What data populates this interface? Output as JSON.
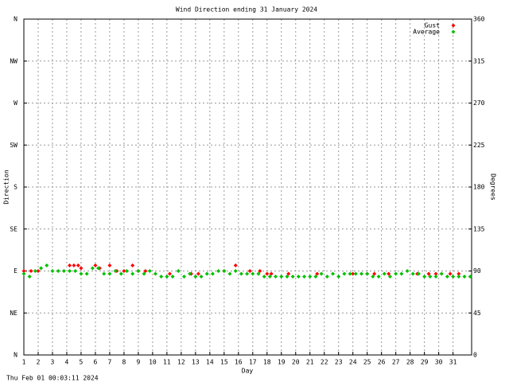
{
  "chart_data": {
    "type": "scatter",
    "title": "Wind Direction ending 31 January 2024",
    "xlabel": "Day",
    "ylabel": "Direction",
    "y2label": "Degrees",
    "footer": "Thu Feb 01 00:03:11 2024",
    "xlim": [
      1,
      32.3
    ],
    "xticks": [
      1,
      2,
      3,
      4,
      5,
      6,
      7,
      8,
      9,
      10,
      11,
      12,
      13,
      14,
      15,
      16,
      17,
      18,
      19,
      20,
      21,
      22,
      23,
      24,
      25,
      26,
      27,
      28,
      29,
      30,
      31
    ],
    "ylim": [
      0,
      360
    ],
    "yticks": [
      {
        "value": 0,
        "label": "N"
      },
      {
        "value": 45,
        "label": "NE"
      },
      {
        "value": 90,
        "label": "E"
      },
      {
        "value": 135,
        "label": "SE"
      },
      {
        "value": 180,
        "label": "S"
      },
      {
        "value": 225,
        "label": "SW"
      },
      {
        "value": 270,
        "label": "W"
      },
      {
        "value": 315,
        "label": "NW"
      },
      {
        "value": 360,
        "label": "N"
      }
    ],
    "y2lim": [
      0,
      360
    ],
    "y2ticks": [
      0,
      45,
      90,
      135,
      180,
      225,
      270,
      315,
      360
    ],
    "grid": true,
    "legend": "top-right",
    "series": [
      {
        "name": "Gust",
        "color": "#ff0000",
        "x": [
          1.0,
          1.5,
          2.0,
          4.2,
          4.5,
          4.8,
          5.0,
          6.0,
          6.3,
          7.0,
          7.5,
          8.0,
          8.6,
          9.0,
          9.5,
          11.2,
          12.7,
          13.2,
          15.0,
          15.8,
          16.8,
          17.5,
          18.0,
          18.3,
          19.5,
          21.5,
          24.0,
          25.0,
          25.5,
          26.5,
          28.5,
          29.3,
          29.8,
          30.8,
          31.4
        ],
        "values": [
          90,
          90,
          90,
          96,
          96,
          96,
          93,
          96,
          93,
          96,
          90,
          90,
          96,
          90,
          90,
          87,
          87,
          87,
          90,
          96,
          90,
          90,
          87,
          87,
          87,
          87,
          87,
          87,
          87,
          87,
          87,
          87,
          87,
          87,
          87
        ]
      },
      {
        "name": "Average",
        "color": "#00c000",
        "x": [
          1.0,
          1.4,
          1.8,
          2.2,
          2.6,
          3.0,
          3.4,
          3.8,
          4.2,
          4.6,
          5.0,
          5.4,
          5.8,
          6.2,
          6.6,
          7.0,
          7.4,
          7.8,
          8.2,
          8.6,
          9.0,
          9.4,
          9.8,
          10.2,
          10.6,
          11.0,
          11.4,
          11.8,
          12.2,
          12.6,
          13.0,
          13.4,
          13.8,
          14.2,
          14.6,
          15.0,
          15.4,
          15.8,
          16.2,
          16.6,
          17.0,
          17.4,
          17.8,
          18.2,
          18.6,
          19.0,
          19.4,
          19.8,
          20.2,
          20.6,
          21.0,
          21.4,
          21.8,
          22.2,
          22.6,
          23.0,
          23.4,
          23.8,
          24.2,
          24.6,
          25.0,
          25.4,
          25.8,
          26.2,
          26.6,
          27.0,
          27.4,
          27.8,
          28.2,
          28.6,
          29.0,
          29.4,
          29.8,
          30.2,
          30.6,
          31.0,
          31.4,
          31.8,
          32.2
        ],
        "values": [
          87,
          84,
          90,
          93,
          96,
          90,
          90,
          90,
          90,
          90,
          87,
          87,
          93,
          93,
          87,
          87,
          90,
          87,
          90,
          87,
          90,
          87,
          90,
          87,
          84,
          84,
          84,
          90,
          84,
          87,
          84,
          84,
          87,
          87,
          90,
          90,
          87,
          90,
          87,
          87,
          87,
          87,
          84,
          84,
          84,
          84,
          84,
          84,
          84,
          84,
          84,
          84,
          87,
          84,
          87,
          84,
          87,
          87,
          87,
          87,
          87,
          84,
          84,
          87,
          84,
          87,
          87,
          90,
          87,
          87,
          84,
          84,
          84,
          87,
          84,
          84,
          84,
          84,
          84
        ]
      }
    ]
  }
}
